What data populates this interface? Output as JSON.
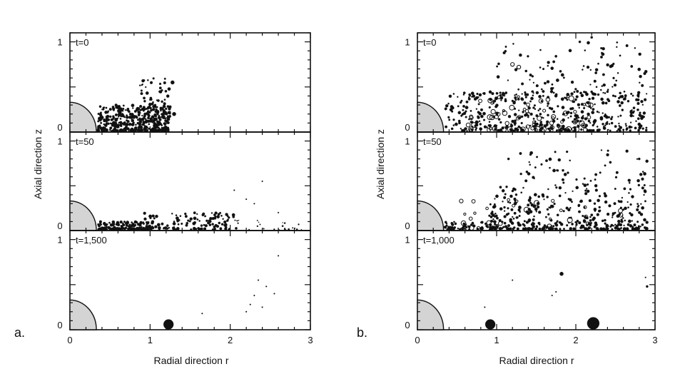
{
  "chart_data": [
    {
      "panel": "a.",
      "type": "scatter",
      "xlabel": "Radial direction  r",
      "ylabel": "Axial direction  z",
      "x_ticks": [
        "0",
        "1",
        "2",
        "3"
      ],
      "xlim": [
        0,
        3
      ],
      "subplots": [
        {
          "label": "t=0",
          "ylim": [
            0,
            1.1
          ],
          "y_ticks": [
            "0",
            "1"
          ],
          "clusters": [
            {
              "x_range": [
                0.35,
                1.25
              ],
              "z_range": [
                0.0,
                0.3
              ],
              "count": 420,
              "size": "small",
              "fill": "filled"
            },
            {
              "x_range": [
                0.85,
                1.25
              ],
              "z_range": [
                0.25,
                0.6
              ],
              "count": 45,
              "size": "small",
              "fill": "filled"
            }
          ],
          "points": [
            {
              "x": 1.28,
              "z": 0.55,
              "size": "medium",
              "fill": "filled"
            },
            {
              "x": 1.3,
              "z": 0.2,
              "size": "medium",
              "fill": "filled"
            }
          ]
        },
        {
          "label": "t=50",
          "ylim": [
            0,
            1.1
          ],
          "y_ticks": [
            "0",
            "1"
          ],
          "clusters": [
            {
              "x_range": [
                0.35,
                1.0
              ],
              "z_range": [
                0.0,
                0.1
              ],
              "count": 140,
              "size": "small",
              "fill": "filled"
            },
            {
              "x_range": [
                0.9,
                2.1
              ],
              "z_range": [
                0.0,
                0.2
              ],
              "count": 130,
              "size": "small",
              "fill": "filled"
            },
            {
              "x_range": [
                1.9,
                2.9
              ],
              "z_range": [
                0.0,
                0.12
              ],
              "count": 25,
              "size": "tiny",
              "fill": "filled"
            }
          ],
          "points": [
            {
              "x": 2.05,
              "z": 0.45,
              "size": "tiny",
              "fill": "filled"
            },
            {
              "x": 2.2,
              "z": 0.35,
              "size": "tiny",
              "fill": "filled"
            },
            {
              "x": 2.4,
              "z": 0.55,
              "size": "tiny",
              "fill": "filled"
            },
            {
              "x": 2.3,
              "z": 0.3,
              "size": "tiny",
              "fill": "filled"
            },
            {
              "x": 2.6,
              "z": 0.2,
              "size": "tiny",
              "fill": "filled"
            }
          ]
        },
        {
          "label": "t=1,500",
          "ylim": [
            0,
            1.1
          ],
          "y_ticks": [
            "0",
            "1"
          ],
          "clusters": [],
          "points": [
            {
              "x": 1.23,
              "z": 0.05,
              "size": "large",
              "fill": "filled"
            },
            {
              "x": 1.65,
              "z": 0.18,
              "size": "tiny",
              "fill": "filled"
            },
            {
              "x": 2.2,
              "z": 0.2,
              "size": "tiny",
              "fill": "filled"
            },
            {
              "x": 2.25,
              "z": 0.28,
              "size": "tiny",
              "fill": "filled"
            },
            {
              "x": 2.3,
              "z": 0.38,
              "size": "tiny",
              "fill": "filled"
            },
            {
              "x": 2.35,
              "z": 0.55,
              "size": "tiny",
              "fill": "filled"
            },
            {
              "x": 2.4,
              "z": 0.25,
              "size": "tiny",
              "fill": "filled"
            },
            {
              "x": 2.45,
              "z": 0.48,
              "size": "tiny",
              "fill": "filled"
            },
            {
              "x": 2.55,
              "z": 0.4,
              "size": "tiny",
              "fill": "filled"
            },
            {
              "x": 2.6,
              "z": 0.82,
              "size": "tiny",
              "fill": "filled"
            }
          ]
        }
      ]
    },
    {
      "panel": "b.",
      "type": "scatter",
      "xlabel": "Radial direction  r",
      "ylabel": "Axial direction  z",
      "x_ticks": [
        "0",
        "1",
        "2",
        "3"
      ],
      "xlim": [
        0,
        3
      ],
      "subplots": [
        {
          "label": "t=0",
          "ylim": [
            0,
            1.1
          ],
          "y_ticks": [
            "0",
            "1"
          ],
          "clusters": [
            {
              "x_range": [
                0.35,
                2.9
              ],
              "z_range": [
                0.0,
                0.45
              ],
              "count": 420,
              "size": "small",
              "fill": "filled"
            },
            {
              "x_range": [
                0.6,
                2.2
              ],
              "z_range": [
                0.0,
                0.4
              ],
              "count": 70,
              "size": "medium",
              "fill": "open"
            },
            {
              "x_range": [
                1.0,
                2.9
              ],
              "z_range": [
                0.4,
                1.0
              ],
              "count": 110,
              "size": "small",
              "fill": "filled"
            }
          ],
          "points": [
            {
              "x": 1.2,
              "z": 0.75,
              "size": "medium",
              "fill": "open"
            },
            {
              "x": 1.28,
              "z": 0.72,
              "size": "medium",
              "fill": "open"
            },
            {
              "x": 2.2,
              "z": 1.05,
              "size": "small",
              "fill": "filled"
            },
            {
              "x": 2.05,
              "z": 1.0,
              "size": "small",
              "fill": "filled"
            }
          ]
        },
        {
          "label": "t=50",
          "ylim": [
            0,
            1.1
          ],
          "y_ticks": [
            "0",
            "1"
          ],
          "clusters": [
            {
              "x_range": [
                0.35,
                2.9
              ],
              "z_range": [
                0.0,
                0.1
              ],
              "count": 220,
              "size": "small",
              "fill": "filled"
            },
            {
              "x_range": [
                0.9,
                2.9
              ],
              "z_range": [
                0.1,
                0.5
              ],
              "count": 200,
              "size": "small",
              "fill": "filled"
            },
            {
              "x_range": [
                1.3,
                2.9
              ],
              "z_range": [
                0.5,
                0.9
              ],
              "count": 60,
              "size": "small",
              "fill": "filled"
            },
            {
              "x_range": [
                0.5,
                2.6
              ],
              "z_range": [
                0.0,
                0.35
              ],
              "count": 30,
              "size": "medium",
              "fill": "open"
            }
          ],
          "points": [
            {
              "x": 1.15,
              "z": 0.8,
              "size": "small",
              "fill": "filled"
            },
            {
              "x": 2.8,
              "z": 0.8,
              "size": "small",
              "fill": "filled"
            }
          ]
        },
        {
          "label": "t=1,000",
          "ylim": [
            0,
            1.1
          ],
          "y_ticks": [
            "0",
            "1"
          ],
          "clusters": [],
          "points": [
            {
              "x": 0.92,
              "z": 0.05,
              "size": "large",
              "fill": "filled"
            },
            {
              "x": 2.22,
              "z": 0.06,
              "size": "xlarge",
              "fill": "filled"
            },
            {
              "x": 1.82,
              "z": 0.62,
              "size": "medium",
              "fill": "filled"
            },
            {
              "x": 1.2,
              "z": 0.55,
              "size": "tiny",
              "fill": "filled"
            },
            {
              "x": 1.7,
              "z": 0.38,
              "size": "tiny",
              "fill": "filled"
            },
            {
              "x": 1.75,
              "z": 0.42,
              "size": "tiny",
              "fill": "filled"
            },
            {
              "x": 2.9,
              "z": 0.48,
              "size": "small",
              "fill": "filled"
            },
            {
              "x": 2.88,
              "z": 0.58,
              "size": "tiny",
              "fill": "filled"
            },
            {
              "x": 0.85,
              "z": 0.25,
              "size": "tiny",
              "fill": "filled"
            }
          ]
        }
      ]
    }
  ]
}
